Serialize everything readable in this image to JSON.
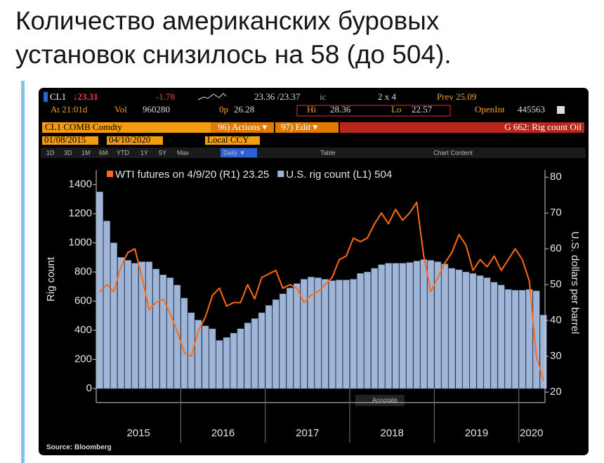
{
  "tweet": {
    "lines": [
      "Количество американских буровых",
      "установок снизилось на 58 (до 504)."
    ]
  },
  "terminal": {
    "row1": [
      "CL1",
      "↓23.31",
      "-1.78",
      "23.36 /23.37",
      "ic",
      "2 x 4",
      "Prev 25.09"
    ],
    "row2": [
      "At 21:01d",
      "Vol",
      "960280",
      "0p",
      "26.28",
      "Hi",
      "28.36",
      "Lo",
      "22.57",
      "OpenInt",
      "445563"
    ],
    "row3": [
      "CL1 COMB Comdty",
      "96) Actions ▾",
      "97) Edit ▾",
      "G 662: Rig count Oil"
    ],
    "row4": [
      "01/08/2015",
      "04/10/2020",
      "Local CCY"
    ],
    "row5": [
      "1D",
      "3D",
      "1M",
      "6M",
      "YTD",
      "1Y",
      "5Y",
      "Max",
      "Daily ▼",
      "Table",
      "Chart Content"
    ],
    "annotate": "Annotate",
    "source": "Source: Bloomberg"
  },
  "chart_data": {
    "type": "bar",
    "y_label": "Rig count",
    "y2_label": "U.S. dollars per barrel",
    "x": [
      2015.042,
      2015.125,
      2015.208,
      2015.292,
      2015.375,
      2015.458,
      2015.542,
      2015.625,
      2015.708,
      2015.792,
      2015.875,
      2015.958,
      2016.042,
      2016.125,
      2016.208,
      2016.292,
      2016.375,
      2016.458,
      2016.542,
      2016.625,
      2016.708,
      2016.792,
      2016.875,
      2016.958,
      2017.042,
      2017.125,
      2017.208,
      2017.292,
      2017.375,
      2017.458,
      2017.542,
      2017.625,
      2017.708,
      2017.792,
      2017.875,
      2017.958,
      2018.042,
      2018.125,
      2018.208,
      2018.292,
      2018.375,
      2018.458,
      2018.542,
      2018.625,
      2018.708,
      2018.792,
      2018.875,
      2018.958,
      2019.042,
      2019.125,
      2019.208,
      2019.292,
      2019.375,
      2019.458,
      2019.542,
      2019.625,
      2019.708,
      2019.792,
      2019.875,
      2019.958,
      2020.042,
      2020.125,
      2020.208,
      2020.292
    ],
    "xlim": [
      2015,
      2020.31
    ],
    "xticks": [
      {
        "value": 2015.5,
        "label": "2015"
      },
      {
        "value": 2016.5,
        "label": "2016"
      },
      {
        "value": 2017.5,
        "label": "2017"
      },
      {
        "value": 2018.5,
        "label": "2018"
      },
      {
        "value": 2019.5,
        "label": "2019"
      },
      {
        "value": 2020.15,
        "label": "2020"
      }
    ],
    "ylim": [
      0,
      1500
    ],
    "yticks": [
      0,
      200,
      400,
      600,
      800,
      1000,
      1200,
      1400
    ],
    "y2lim": [
      21,
      82
    ],
    "y2ticks": [
      20,
      30,
      40,
      50,
      60,
      70,
      80
    ],
    "series": [
      {
        "name": "U.S. rig count  (L1) 504",
        "color": "#9fb6d8",
        "type": "bar",
        "values": [
          1350,
          1150,
          1000,
          900,
          880,
          860,
          870,
          870,
          820,
          780,
          760,
          710,
          620,
          520,
          470,
          430,
          410,
          330,
          350,
          380,
          410,
          450,
          480,
          520,
          570,
          610,
          650,
          690,
          720,
          750,
          765,
          760,
          750,
          740,
          745,
          745,
          750,
          790,
          800,
          825,
          850,
          860,
          860,
          860,
          865,
          875,
          885,
          880,
          870,
          855,
          825,
          815,
          800,
          790,
          775,
          760,
          730,
          710,
          680,
          675,
          675,
          680,
          670,
          504
        ]
      },
      {
        "name": "WTI futures on 4/9/20 (R1) 23.25",
        "color": "#ff6a13",
        "type": "line",
        "axis": "y2",
        "values": [
          48,
          50,
          48,
          55,
          59,
          60,
          52,
          43,
          45,
          46,
          42,
          37,
          31,
          30,
          37,
          41,
          47,
          49,
          44,
          45,
          45,
          50,
          46,
          52,
          53,
          54,
          49,
          50,
          49,
          45,
          47,
          48,
          50,
          52,
          57,
          58,
          63,
          62,
          63,
          67,
          70,
          67,
          71,
          68,
          70,
          73,
          58,
          48,
          52,
          56,
          59,
          64,
          61,
          54,
          57,
          55,
          58,
          54,
          57,
          60,
          57,
          51,
          30,
          23.25
        ]
      }
    ]
  }
}
